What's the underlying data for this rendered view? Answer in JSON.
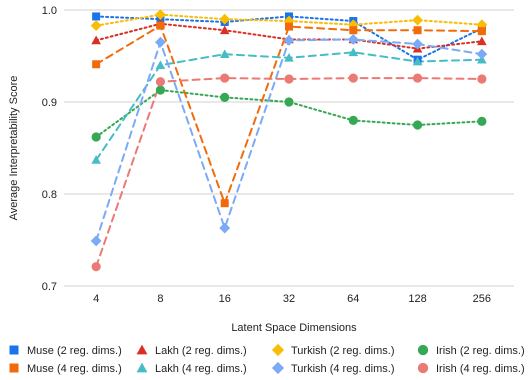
{
  "chart_data": {
    "type": "line",
    "title": "",
    "xlabel": "Latent Space Dimensions",
    "ylabel": "Average Interpretability Score",
    "x": [
      "4",
      "8",
      "16",
      "32",
      "64",
      "128",
      "256"
    ],
    "ylim": [
      0.7,
      1.0
    ],
    "yticks": [
      "0.7",
      "0.8",
      "0.9",
      "1.0"
    ],
    "grid": true,
    "legend_position": "bottom",
    "series": [
      {
        "name": "Muse (2 reg. dims.)",
        "color": "#1a73e8",
        "marker": "square",
        "dash": "dotted",
        "values": [
          0.993,
          0.99,
          0.987,
          0.993,
          0.988,
          0.946,
          0.98
        ]
      },
      {
        "name": "Lakh (2 reg. dims.)",
        "color": "#d93025",
        "marker": "triangle",
        "dash": "dotted",
        "values": [
          0.967,
          0.985,
          0.978,
          0.968,
          0.968,
          0.958,
          0.966
        ]
      },
      {
        "name": "Turkish (2 reg. dims.)",
        "color": "#fbbc04",
        "marker": "diamond",
        "dash": "dotted",
        "values": [
          0.983,
          0.995,
          0.99,
          0.988,
          0.984,
          0.989,
          0.984
        ]
      },
      {
        "name": "Irish (2 reg. dims.)",
        "color": "#34a853",
        "marker": "circle",
        "dash": "dotted",
        "values": [
          0.862,
          0.913,
          0.905,
          0.9,
          0.88,
          0.875,
          0.879
        ]
      },
      {
        "name": "Muse (4 reg. dims.)",
        "color": "#f26b0a",
        "marker": "square",
        "dash": "dashed",
        "values": [
          0.941,
          0.983,
          0.79,
          0.982,
          0.978,
          0.978,
          0.977
        ]
      },
      {
        "name": "Lakh (4 reg. dims.)",
        "color": "#46bdc6",
        "marker": "triangle",
        "dash": "dashed",
        "values": [
          0.837,
          0.94,
          0.952,
          0.948,
          0.954,
          0.944,
          0.946
        ]
      },
      {
        "name": "Turkish (4 reg. dims.)",
        "color": "#7baaf7",
        "marker": "diamond",
        "dash": "dashed",
        "values": [
          0.749,
          0.965,
          0.763,
          0.967,
          0.968,
          0.963,
          0.952
        ]
      },
      {
        "name": "Irish (4 reg. dims.)",
        "color": "#ea7a73",
        "marker": "circle",
        "dash": "dashed",
        "values": [
          0.721,
          0.922,
          0.926,
          0.925,
          0.926,
          0.926,
          0.925
        ]
      }
    ]
  }
}
